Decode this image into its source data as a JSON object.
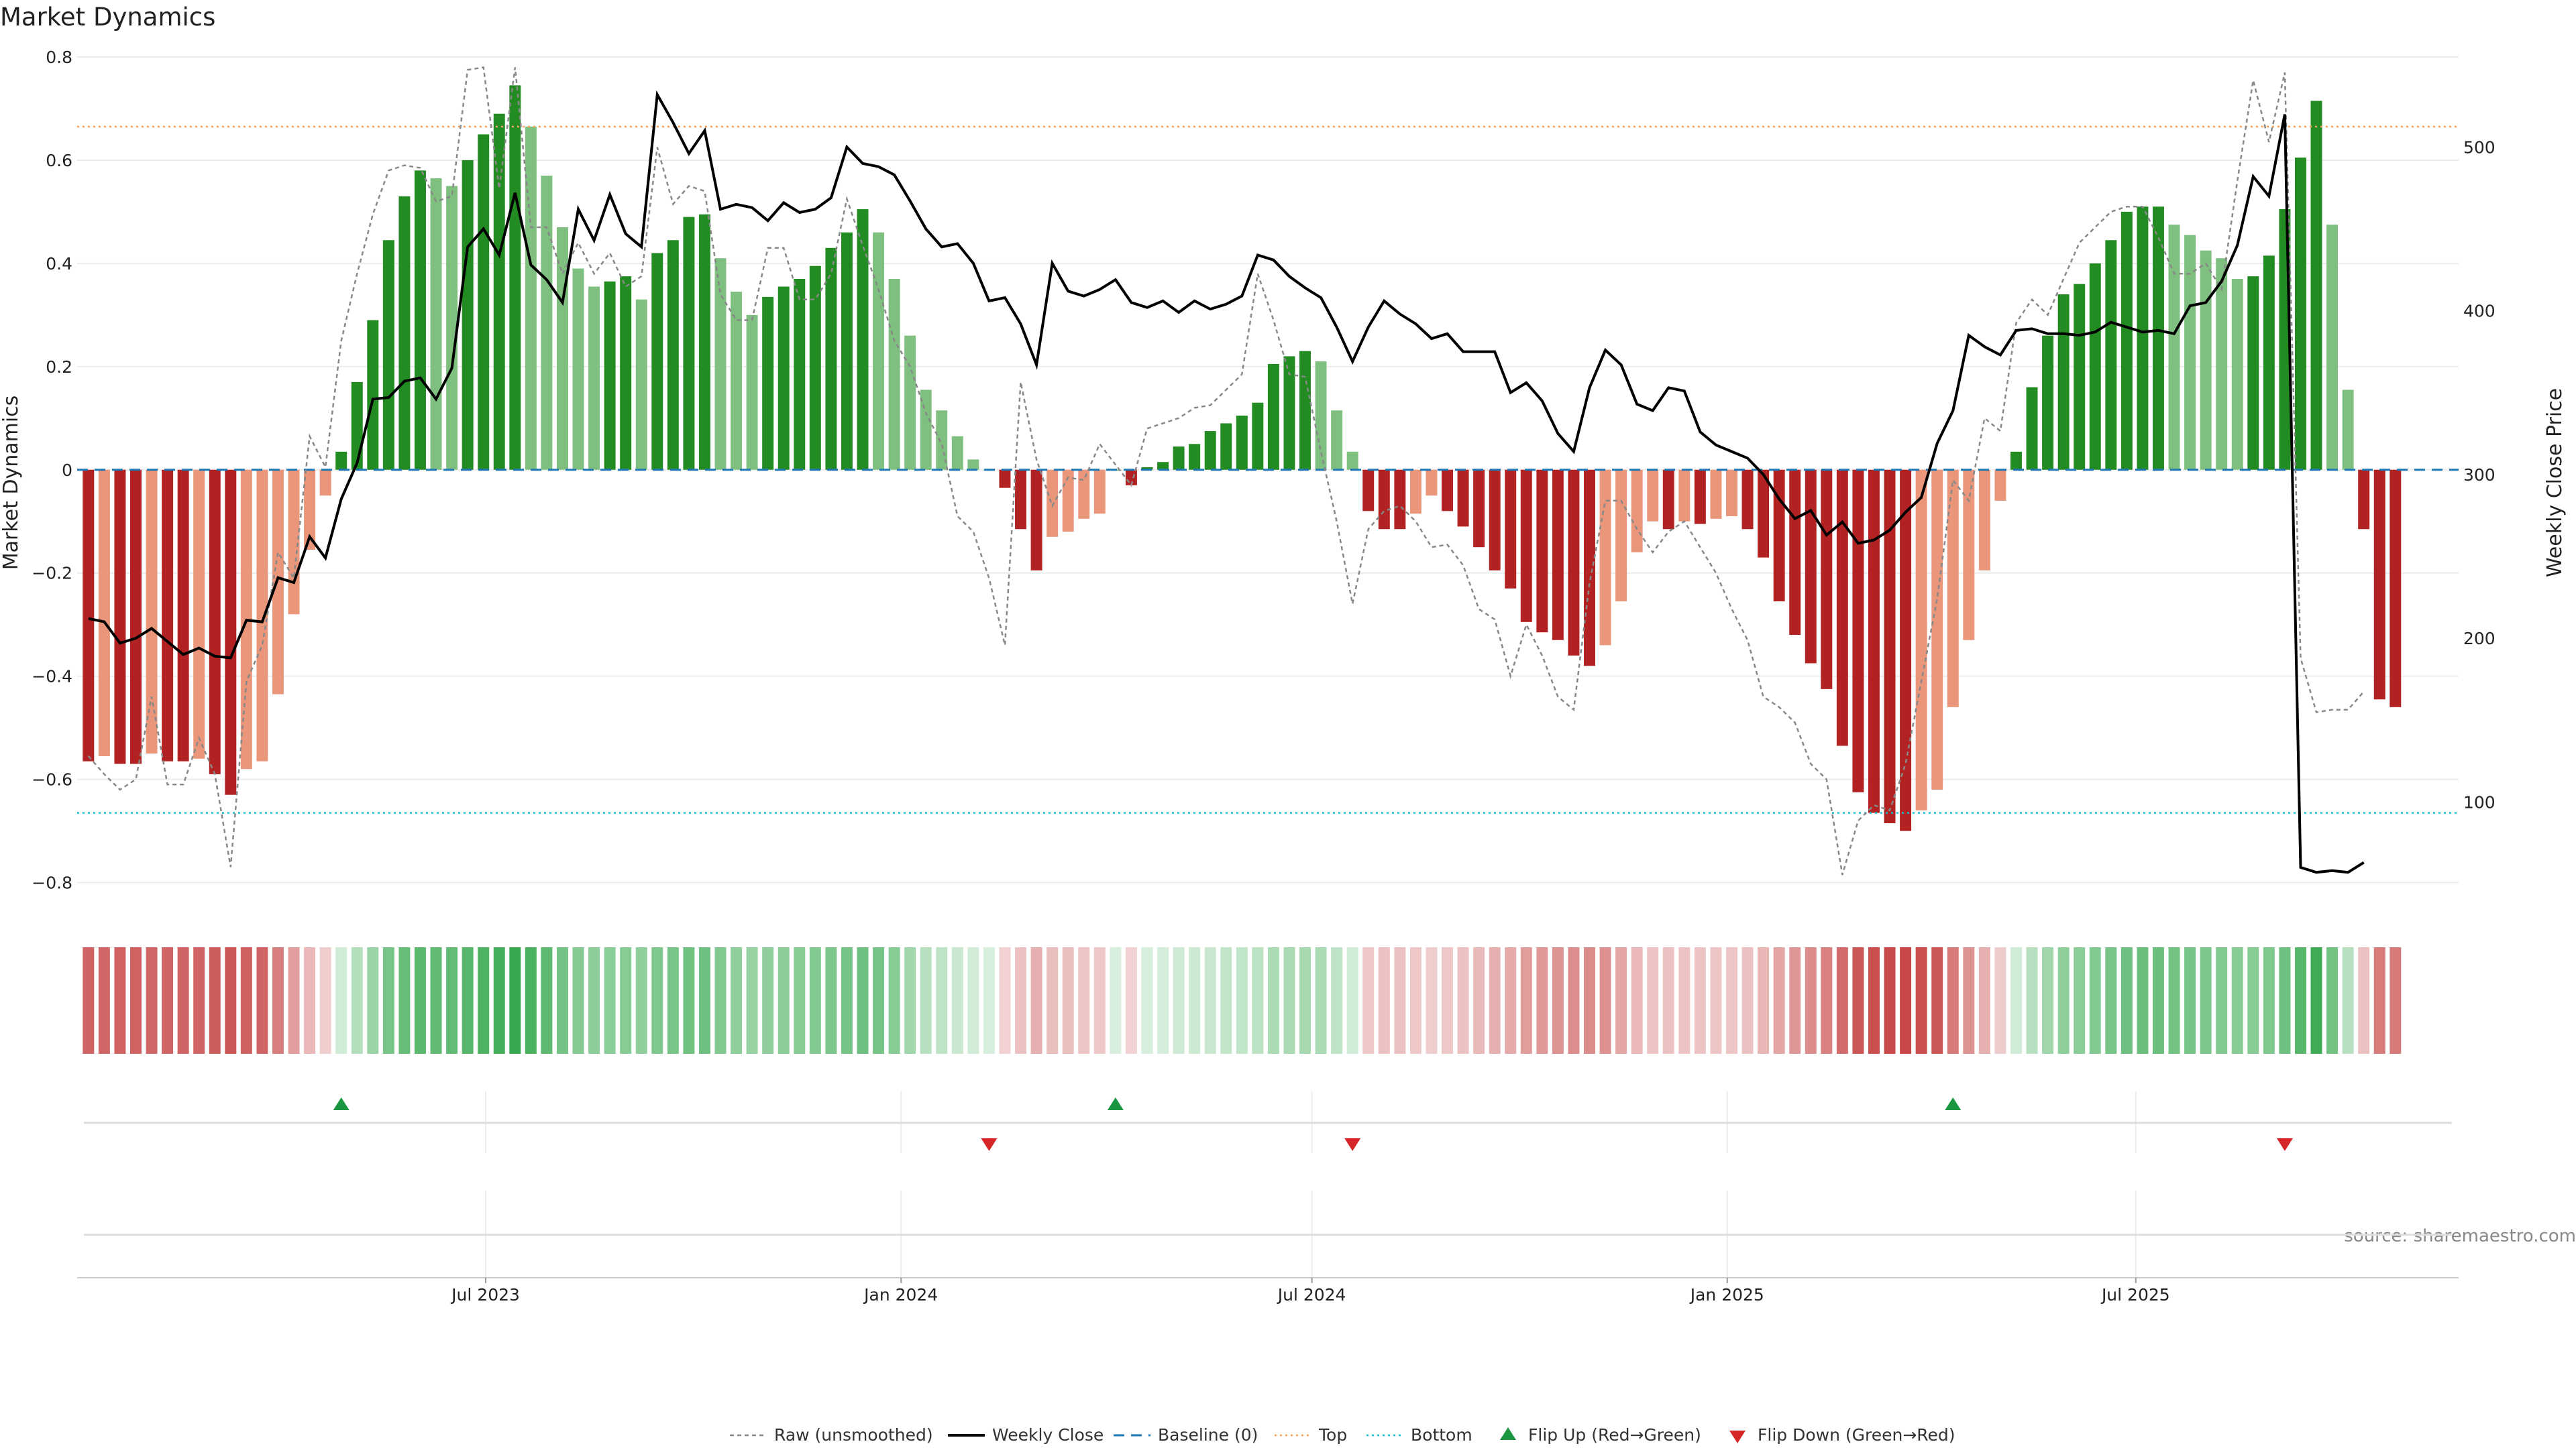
{
  "chart_data": {
    "type": "bar",
    "title": "Market Dynamics",
    "ylabel": "Market Dynamics",
    "y2label": "Weekly Close Price",
    "ylim": [
      -0.85,
      0.8
    ],
    "y2lim": [
      35,
      555
    ],
    "yticks": [
      -0.8,
      -0.6,
      -0.4,
      -0.2,
      0,
      0.2,
      0.4,
      0.6,
      0.8
    ],
    "ytick_labels": [
      "−0.8",
      "−0.6",
      "−0.4",
      "−0.2",
      "0",
      "0.2",
      "0.4",
      "0.6",
      "0.8"
    ],
    "y2ticks": [
      100,
      200,
      300,
      400,
      500
    ],
    "y2tick_labels": [
      "100",
      "200",
      "300",
      "400",
      "500"
    ],
    "x_start": "2023-01-01",
    "x_end": "2025-11-21",
    "week_start": "2023-01-06",
    "xticks": [
      "2023-07-01",
      "2024-01-01",
      "2024-07-01",
      "2025-01-01",
      "2025-07-01"
    ],
    "xtick_labels": [
      "Jul 2023",
      "Jan 2024",
      "Jul 2024",
      "Jan 2025",
      "Jul 2025"
    ],
    "top_level": 0.665,
    "bottom_level": -0.665,
    "baseline": 0,
    "grid": true,
    "legend_position": "bottom-center",
    "source": "source: sharemaestro.com",
    "colors": {
      "strong_up": "#228B22",
      "weak_up": "#7FBF7F",
      "strong_down": "#B22222",
      "weak_down": "#E9967A",
      "close": "#000000",
      "raw": "#888888",
      "baseline": "#1F77B4",
      "top": "#F4A460",
      "bottom": "#17BECF",
      "flip_up": "#1A9641",
      "flip_down": "#D62728"
    },
    "series": [
      {
        "name": "Market Dynamics",
        "values": [
          -0.565,
          -0.555,
          -0.57,
          -0.57,
          -0.55,
          -0.565,
          -0.565,
          -0.56,
          -0.59,
          -0.63,
          -0.58,
          -0.565,
          -0.435,
          -0.28,
          -0.155,
          -0.05,
          0.035,
          0.17,
          0.29,
          0.445,
          0.53,
          0.58,
          0.565,
          0.55,
          0.6,
          0.65,
          0.69,
          0.745,
          0.665,
          0.57,
          0.47,
          0.39,
          0.355,
          0.365,
          0.375,
          0.33,
          0.42,
          0.445,
          0.49,
          0.495,
          0.41,
          0.345,
          0.3,
          0.335,
          0.355,
          0.37,
          0.395,
          0.43,
          0.46,
          0.505,
          0.46,
          0.37,
          0.26,
          0.155,
          0.115,
          0.065,
          0.02,
          0.0,
          -0.035,
          -0.115,
          -0.195,
          -0.13,
          -0.12,
          -0.095,
          -0.085,
          0.0,
          -0.03,
          0.005,
          0.015,
          0.045,
          0.05,
          0.075,
          0.09,
          0.105,
          0.13,
          0.205,
          0.22,
          0.23,
          0.21,
          0.115,
          0.035,
          -0.08,
          -0.115,
          -0.115,
          -0.085,
          -0.05,
          -0.08,
          -0.11,
          -0.15,
          -0.195,
          -0.23,
          -0.295,
          -0.315,
          -0.33,
          -0.36,
          -0.38,
          -0.34,
          -0.255,
          -0.16,
          -0.1,
          -0.115,
          -0.1,
          -0.105,
          -0.095,
          -0.09,
          -0.115,
          -0.17,
          -0.255,
          -0.32,
          -0.375,
          -0.425,
          -0.535,
          -0.625,
          -0.665,
          -0.685,
          -0.7,
          -0.66,
          -0.62,
          -0.46,
          -0.33,
          -0.195,
          -0.06,
          0.035,
          0.16,
          0.26,
          0.34,
          0.36,
          0.4,
          0.445,
          0.5,
          0.51,
          0.51,
          0.475,
          0.455,
          0.425,
          0.41,
          0.37,
          0.375,
          0.415,
          0.505,
          0.605,
          0.715,
          0.475,
          0.155,
          -0.115,
          -0.445,
          -0.46
        ]
      },
      {
        "name": "Weekly Close",
        "values": [
          212,
          210,
          197,
          200,
          206,
          198,
          190,
          194,
          189,
          188,
          211,
          210,
          237,
          234,
          262,
          249,
          285,
          307,
          346,
          347,
          357,
          359,
          346,
          365,
          439,
          450,
          434,
          472,
          428,
          419,
          405,
          462,
          443,
          471,
          447,
          439,
          532,
          515,
          496,
          510,
          462,
          465,
          463,
          455,
          466,
          460,
          462,
          469,
          500,
          490,
          488,
          483,
          467,
          450,
          439,
          441,
          429,
          406,
          408,
          392,
          367,
          429,
          412,
          409,
          413,
          419,
          405,
          402,
          406,
          399,
          406,
          401,
          404,
          409,
          434,
          431,
          421,
          414,
          408,
          390,
          369,
          390,
          406,
          398,
          392,
          383,
          386,
          375,
          375,
          375,
          350,
          356,
          345,
          325,
          314,
          353,
          376,
          367,
          343,
          339,
          353,
          351,
          326,
          318,
          314,
          310,
          300,
          285,
          273,
          278,
          263,
          271,
          258,
          260,
          266,
          277,
          286,
          319,
          339,
          385,
          378,
          373,
          388,
          389,
          386,
          386,
          385,
          387,
          393,
          390,
          387,
          388,
          386,
          403,
          405,
          418,
          440,
          482,
          470,
          520,
          60,
          57,
          58,
          57,
          63
        ]
      },
      {
        "name": "Raw (unsmoothed)",
        "values": [
          -0.555,
          -0.59,
          -0.62,
          -0.6,
          -0.44,
          -0.61,
          -0.61,
          -0.52,
          -0.59,
          -0.77,
          -0.41,
          -0.34,
          -0.16,
          -0.21,
          0.065,
          0.005,
          0.25,
          0.38,
          0.495,
          0.58,
          0.59,
          0.585,
          0.52,
          0.53,
          0.775,
          0.78,
          0.545,
          0.78,
          0.47,
          0.47,
          0.38,
          0.44,
          0.38,
          0.42,
          0.355,
          0.375,
          0.625,
          0.515,
          0.55,
          0.54,
          0.34,
          0.29,
          0.29,
          0.43,
          0.43,
          0.33,
          0.33,
          0.38,
          0.525,
          0.435,
          0.35,
          0.25,
          0.2,
          0.11,
          0.05,
          -0.09,
          -0.12,
          -0.21,
          -0.34,
          0.17,
          0.02,
          -0.07,
          -0.015,
          -0.02,
          0.05,
          0.01,
          -0.03,
          0.08,
          0.09,
          0.1,
          0.12,
          0.125,
          0.155,
          0.185,
          0.38,
          0.29,
          0.185,
          0.18,
          0.035,
          -0.1,
          -0.26,
          -0.115,
          -0.08,
          -0.07,
          -0.1,
          -0.15,
          -0.145,
          -0.185,
          -0.27,
          -0.29,
          -0.4,
          -0.3,
          -0.36,
          -0.44,
          -0.465,
          -0.22,
          -0.06,
          -0.06,
          -0.115,
          -0.16,
          -0.12,
          -0.1,
          -0.15,
          -0.2,
          -0.27,
          -0.33,
          -0.44,
          -0.46,
          -0.49,
          -0.57,
          -0.6,
          -0.785,
          -0.68,
          -0.65,
          -0.66,
          -0.57,
          -0.41,
          -0.25,
          -0.02,
          -0.06,
          0.1,
          0.075,
          0.285,
          0.33,
          0.3,
          0.37,
          0.44,
          0.47,
          0.5,
          0.51,
          0.51,
          0.45,
          0.38,
          0.38,
          0.4,
          0.35,
          0.56,
          0.755,
          0.635,
          0.77,
          -0.365,
          -0.47,
          -0.465,
          -0.465,
          -0.43
        ]
      }
    ],
    "legend": [
      "Raw (unsmoothed)",
      "Weekly Close",
      "Baseline (0)",
      "Top",
      "Bottom",
      "Flip Up (Red→Green)",
      "Flip Down (Green→Red)"
    ],
    "flip_up_index": [
      16,
      65,
      118
    ],
    "flip_down_index": [
      57,
      80,
      139
    ]
  }
}
